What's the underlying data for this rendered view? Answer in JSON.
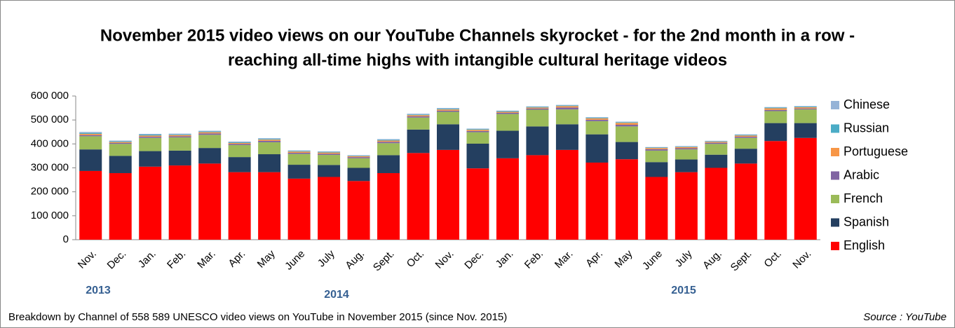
{
  "chart_data": {
    "type": "stacked_bar",
    "title": [
      "November 2015 video views on our YouTube Channels skyrocket - for the 2nd month in a row -",
      "reaching all-time highs with intangible cultural heritage videos"
    ],
    "categories": [
      "Nov.",
      "Dec.",
      "Jan.",
      "Feb.",
      "Mar.",
      "Apr.",
      "May",
      "June",
      "July",
      "Aug.",
      "Sept.",
      "Oct.",
      "Nov.",
      "Dec.",
      "Jan.",
      "Feb.",
      "Mar.",
      "Apr.",
      "May",
      "June",
      "July",
      "Aug.",
      "Sept.",
      "Oct.",
      "Nov."
    ],
    "year_labels": [
      "2013",
      "2014",
      "2015"
    ],
    "series": [
      {
        "name": "English",
        "color": "#ff0000",
        "values": [
          287000,
          278000,
          305000,
          310000,
          318000,
          282000,
          282000,
          255000,
          262000,
          245000,
          278000,
          362000,
          375000,
          298000,
          340000,
          353000,
          375000,
          322000,
          336000,
          262000,
          282000,
          300000,
          318000,
          412000,
          425000
        ]
      },
      {
        "name": "Spanish",
        "color": "#243f60",
        "values": [
          90000,
          72000,
          65000,
          62000,
          65000,
          63000,
          75000,
          58000,
          50000,
          55000,
          75000,
          98000,
          107000,
          103000,
          115000,
          120000,
          107000,
          118000,
          72000,
          62000,
          53000,
          55000,
          62000,
          75000,
          62000
        ]
      },
      {
        "name": "French",
        "color": "#9bbb59",
        "values": [
          55000,
          50000,
          55000,
          55000,
          55000,
          50000,
          50000,
          45000,
          42000,
          40000,
          50000,
          50000,
          52000,
          48000,
          70000,
          70000,
          62000,
          55000,
          65000,
          48000,
          42000,
          45000,
          45000,
          50000,
          57000
        ]
      },
      {
        "name": "Arabic",
        "color": "#8064a2",
        "values": [
          5000,
          4000,
          5000,
          5000,
          6000,
          5000,
          6000,
          5000,
          5000,
          5000,
          6000,
          5000,
          5000,
          5000,
          5000,
          5000,
          8000,
          6000,
          7000,
          6000,
          5000,
          5000,
          5000,
          5000,
          4000
        ]
      },
      {
        "name": "Portuguese",
        "color": "#f79646",
        "values": [
          5000,
          4000,
          5000,
          5000,
          5000,
          4000,
          5000,
          5000,
          5000,
          4000,
          5000,
          5000,
          5000,
          5000,
          4000,
          4000,
          6000,
          6000,
          8000,
          5000,
          5000,
          4000,
          5000,
          7000,
          5000
        ]
      },
      {
        "name": "Russian",
        "color": "#4bacc6",
        "values": [
          4000,
          3000,
          4000,
          3000,
          3000,
          3000,
          3000,
          3000,
          3000,
          2000,
          3000,
          3000,
          3000,
          3000,
          3000,
          3000,
          3000,
          3000,
          3000,
          2000,
          2000,
          2000,
          3000,
          3000,
          3000
        ]
      },
      {
        "name": "Chinese",
        "color": "#95b3d7",
        "values": [
          4000,
          3000,
          3000,
          3000,
          3000,
          3000,
          3000,
          2000,
          2000,
          2000,
          3000,
          3000,
          3000,
          2000,
          2000,
          2000,
          2000,
          2000,
          2000,
          2000,
          2000,
          2000,
          2000,
          2000,
          2000
        ]
      }
    ],
    "ylim": [
      0,
      600000
    ],
    "yticks": [
      0,
      {
        "value": 100000,
        "label": "100 000"
      },
      {
        "value": 200000,
        "label": "200 000"
      },
      {
        "value": 300000,
        "label": "300 000"
      },
      {
        "value": 400000,
        "label": "400 000"
      },
      {
        "value": 500000,
        "label": "500 000"
      },
      {
        "value": 600000,
        "label": "600 000"
      }
    ],
    "legend": "right",
    "footnote": "Breakdown by Channel of 558 589 UNESCO video views on YouTube in November 2015 (since Nov. 2015)",
    "source": "Source : YouTube"
  }
}
